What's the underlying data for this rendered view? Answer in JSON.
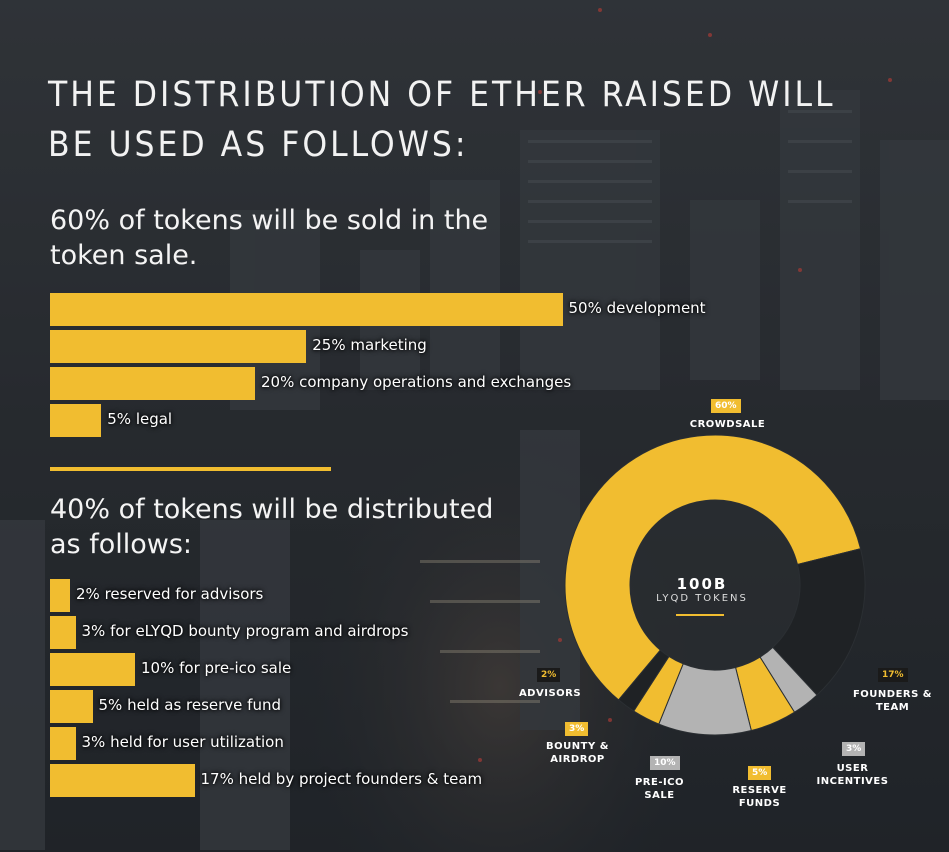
{
  "header": {
    "title": "THE DISTRIBUTION OF ETHER RAISED WILL BE USED AS FOLLOWS:"
  },
  "section1": {
    "heading": "60% of tokens will be sold in the token sale."
  },
  "section2": {
    "heading": "40% of tokens will be distributed as follows:"
  },
  "colors": {
    "accent": "#f1bd30",
    "dark": "#1f2225",
    "grey": "#b3b3b3"
  },
  "chart_data": [
    {
      "type": "bar",
      "orientation": "horizontal",
      "categories": [
        "50% development",
        "25% marketing",
        "20% company operations and exchanges",
        "5% legal"
      ],
      "values": [
        50,
        25,
        20,
        5
      ],
      "unit": "%"
    },
    {
      "type": "bar",
      "orientation": "horizontal",
      "categories": [
        "2% reserved for advisors",
        "3% for eLYQD bounty program and airdrops",
        "10% for pre-ico sale",
        "5% held as reserve fund",
        "3% held for user utilization",
        "17% held by project founders & team"
      ],
      "values": [
        2,
        3,
        10,
        5,
        3,
        17
      ],
      "unit": "%"
    },
    {
      "type": "pie",
      "center_title": "100B",
      "center_subtitle": "LYQD TOKENS",
      "slices": [
        {
          "name": "CROWDSALE",
          "badge": "60%",
          "value": 60,
          "color": "#f1bd30"
        },
        {
          "name": "FOUNDERS & TEAM",
          "badge": "17%",
          "value": 17,
          "color": "#1f2225"
        },
        {
          "name": "USER INCENTIVES",
          "badge": "3%",
          "value": 3,
          "color": "#b3b3b3"
        },
        {
          "name": "RESERVE FUNDS",
          "badge": "5%",
          "value": 5,
          "color": "#f1bd30"
        },
        {
          "name": "PRE-ICO SALE",
          "badge": "10%",
          "value": 10,
          "color": "#b3b3b3"
        },
        {
          "name": "BOUNTY & AIRDROP",
          "badge": "3%",
          "value": 3,
          "color": "#f1bd30"
        },
        {
          "name": "ADVISORS",
          "badge": "2%",
          "value": 2,
          "color": "#1f2225"
        }
      ]
    }
  ]
}
